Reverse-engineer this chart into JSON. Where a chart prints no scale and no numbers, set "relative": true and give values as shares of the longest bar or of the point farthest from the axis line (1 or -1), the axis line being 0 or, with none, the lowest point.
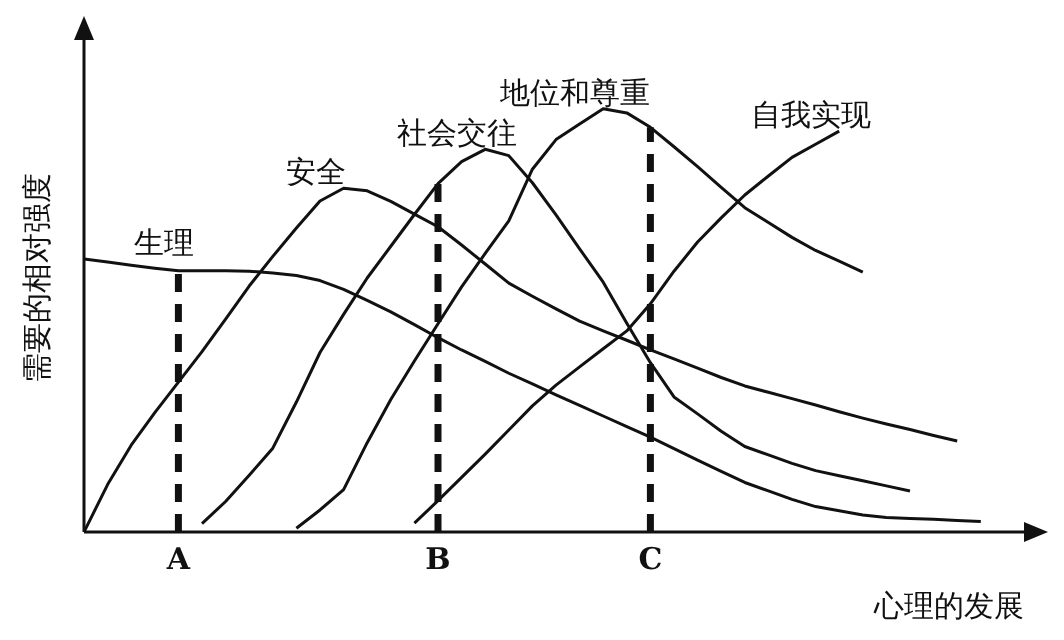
{
  "chart_data": {
    "type": "line",
    "relative": true,
    "ylabel": "需要的相对强度",
    "xlabel": "心理的发展",
    "marker": "none",
    "categories": [
      null,
      null,
      null,
      null,
      "A",
      null,
      null,
      null,
      null,
      null,
      null,
      null,
      null,
      null,
      null,
      "B",
      null,
      null,
      null,
      null,
      null,
      null,
      null,
      null,
      "C",
      null,
      null,
      null,
      null,
      null,
      null,
      null,
      null,
      null,
      null,
      null,
      null,
      null,
      null,
      null,
      null
    ],
    "ref_lines": [
      {
        "axis": "x",
        "value": "A",
        "line_style": "dashed",
        "color": "#111111"
      },
      {
        "axis": "x",
        "value": "B",
        "line_style": "dashed",
        "color": "#111111"
      },
      {
        "axis": "x",
        "value": "C",
        "line_style": "dashed",
        "color": "#111111"
      }
    ],
    "series": [
      {
        "name": "生理",
        "color": "#111111",
        "values": [
          0.645,
          0.638,
          0.63,
          0.623,
          0.617,
          0.617,
          0.617,
          0.616,
          0.612,
          0.606,
          0.594,
          0.573,
          0.547,
          0.52,
          0.49,
          0.459,
          0.43,
          0.403,
          0.375,
          0.35,
          0.324,
          0.299,
          0.274,
          0.249,
          0.224,
          0.197,
          0.17,
          0.143,
          0.117,
          0.097,
          0.077,
          0.06,
          0.05,
          0.04,
          0.034,
          0.032,
          0.03,
          0.027,
          0.025,
          null,
          null
        ]
      },
      {
        "name": "安全",
        "color": "#111111",
        "values": [
          0,
          0.112,
          0.205,
          0.282,
          0.354,
          0.426,
          0.503,
          0.581,
          0.651,
          0.718,
          0.782,
          0.812,
          0.806,
          0.781,
          0.751,
          0.721,
          0.678,
          0.633,
          0.588,
          0.557,
          0.527,
          0.498,
          0.475,
          0.453,
          0.43,
          0.409,
          0.387,
          0.365,
          0.345,
          0.33,
          0.315,
          0.3,
          0.284,
          0.269,
          0.255,
          0.242,
          0.228,
          0.215,
          null,
          null,
          null
        ]
      },
      {
        "name": "社会交往",
        "color": "#111111",
        "values": [
          null,
          null,
          null,
          null,
          null,
          0.02,
          0.072,
          0.134,
          0.198,
          0.307,
          0.424,
          0.514,
          0.6,
          0.675,
          0.75,
          0.823,
          0.875,
          0.904,
          0.889,
          0.825,
          0.749,
          0.669,
          0.59,
          0.493,
          0.4,
          0.319,
          0.279,
          0.238,
          0.202,
          0.182,
          0.162,
          0.145,
          0.133,
          0.121,
          0.109,
          0.097,
          null,
          null,
          null,
          null,
          null
        ]
      },
      {
        "name": "地位和尊重",
        "color": "#111111",
        "values": [
          null,
          null,
          null,
          null,
          null,
          null,
          null,
          null,
          null,
          0.009,
          0.052,
          0.1,
          0.211,
          0.313,
          0.404,
          0.492,
          0.579,
          0.658,
          0.735,
          0.857,
          0.927,
          0.964,
          1,
          0.99,
          0.956,
          0.91,
          0.863,
          0.814,
          0.766,
          0.731,
          0.696,
          0.665,
          0.64,
          0.614,
          null,
          null,
          null,
          null,
          null,
          null,
          null
        ]
      },
      {
        "name": "自我实现",
        "color": "#111111",
        "values": [
          null,
          null,
          null,
          null,
          null,
          null,
          null,
          null,
          null,
          null,
          null,
          null,
          null,
          null,
          0.021,
          0.074,
          0.129,
          0.184,
          0.241,
          0.298,
          0.347,
          0.39,
          0.433,
          0.475,
          0.539,
          0.616,
          0.685,
          0.742,
          0.796,
          0.841,
          0.885,
          0.916,
          0.947,
          null,
          null,
          null,
          null,
          null,
          null,
          null,
          null
        ]
      }
    ]
  }
}
